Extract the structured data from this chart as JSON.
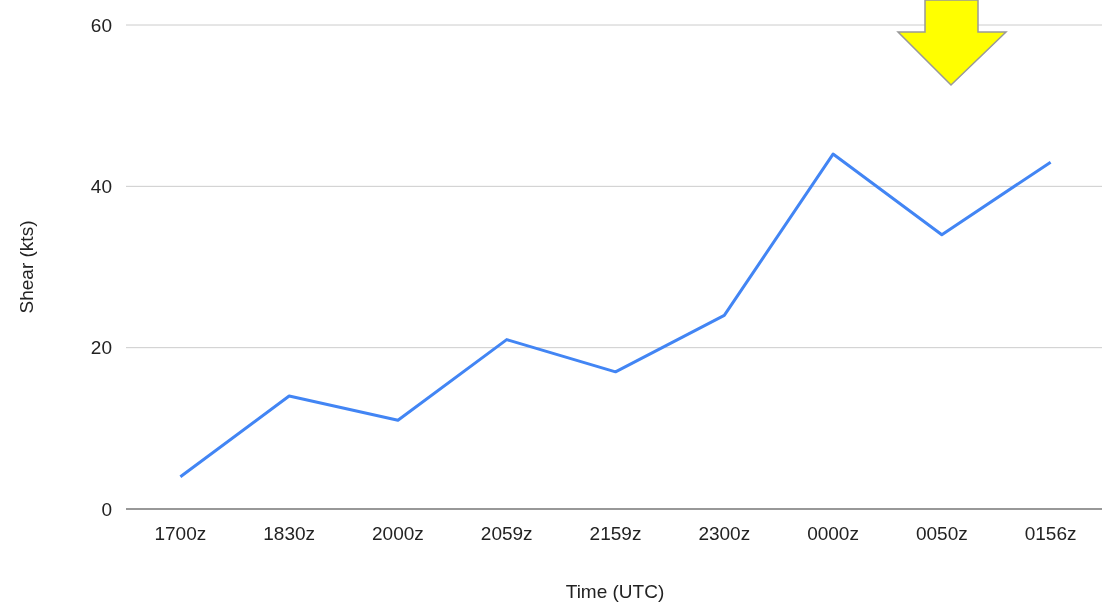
{
  "chart_data": {
    "type": "line",
    "xlabel": "Time (UTC)",
    "ylabel": "Shear (kts)",
    "categories": [
      "1700z",
      "1830z",
      "2000z",
      "2059z",
      "2159z",
      "2300z",
      "0000z",
      "0050z",
      "0156z"
    ],
    "series": [
      {
        "color": "#4285f4",
        "values": [
          4,
          14,
          11,
          21,
          17,
          24,
          44,
          34,
          43
        ]
      }
    ],
    "ylim": [
      0,
      60
    ],
    "yticks": [
      0,
      20,
      40,
      60
    ],
    "grid": "y",
    "marker": "none",
    "line_style": "solid"
  }
}
